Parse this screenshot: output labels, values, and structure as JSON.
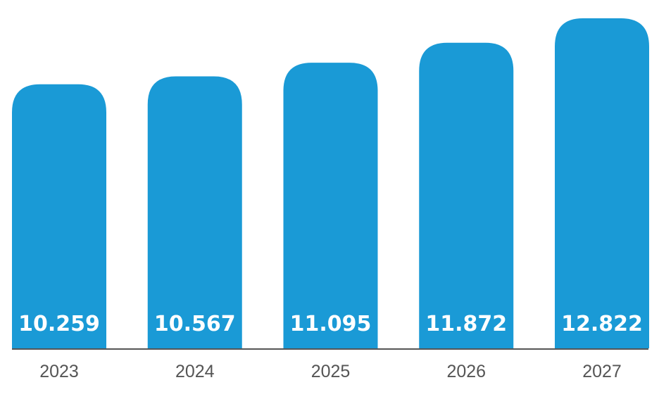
{
  "chart_data": {
    "type": "bar",
    "categories": [
      "2023",
      "2024",
      "2025",
      "2026",
      "2027"
    ],
    "values": [
      10.259,
      10.567,
      11.095,
      11.872,
      12.822
    ],
    "value_labels": [
      "10.259",
      "10.567",
      "11.095",
      "11.872",
      "12.822"
    ],
    "title": "",
    "xlabel": "",
    "ylabel": "",
    "ylim": [
      0,
      12.822
    ],
    "grid": false,
    "legend": "none",
    "colors": {
      "bar": "#1a9ad6",
      "value_label": "#ffffff",
      "axis": "#555555",
      "tick_label": "#555555"
    }
  }
}
